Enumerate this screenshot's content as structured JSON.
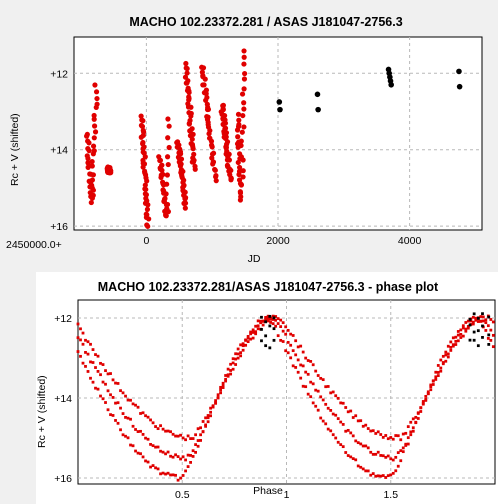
{
  "chart_data": [
    {
      "type": "scatter",
      "title": "MACHO 102.23372.281 / ASAS J181047-2756.3",
      "xlabel": "JD",
      "ylabel": "Rc + V (shifted)",
      "x_offset_label": "2450000.0+",
      "xlim": [
        -1100,
        5100
      ],
      "ylim": [
        16.1,
        11.05
      ],
      "y_inverted": true,
      "grid": true,
      "xticks": [
        0,
        2000,
        4000
      ],
      "xtick_labels": [
        "0",
        "2000",
        "4000"
      ],
      "yticks": [
        12,
        14,
        16
      ],
      "ytick_labels": [
        "+12",
        "+14",
        "+16"
      ],
      "series": [
        {
          "color": "#e00000",
          "segments": [
            {
              "x": [
                -900,
                -760
              ],
              "y_start": 13.6,
              "y_end": 15.4,
              "y_min": 12.3,
              "period_turn": -830
            },
            {
              "x": [
                -580,
                -560
              ],
              "y": [
                14.5,
                14.6
              ]
            },
            {
              "x": [
                -80,
                30
              ],
              "y_start": 13.1,
              "y_end": 16.0
            },
            {
              "x": [
                200,
                350
              ],
              "y_start": 14.2,
              "y_end": 15.8,
              "y_min": 13.2,
              "period_turn": 310
            },
            {
              "x": [
                480,
                600
              ],
              "y_start": 13.8,
              "y_end": 15.5
            },
            {
              "x": [
                600,
                730
              ],
              "y_start": 11.8,
              "y_end": 14.5
            },
            {
              "x": [
                850,
                1050
              ],
              "y_start": 11.8,
              "y_end": 14.8
            },
            {
              "x": [
                1150,
                1280
              ],
              "y_start": 12.8,
              "y_end": 14.8
            },
            {
              "x": [
                1380,
                1500
              ],
              "y_start": 13.1,
              "y_end": 15.3,
              "y_min": 11.4,
              "period_turn": 1440
            }
          ]
        },
        {
          "color": "#000000",
          "points": [
            [
              2020,
              12.75
            ],
            [
              2030,
              12.95
            ],
            [
              2600,
              12.55
            ],
            [
              2610,
              12.95
            ],
            [
              3680,
              11.9
            ],
            [
              3690,
              12.0
            ],
            [
              3700,
              12.1
            ],
            [
              3710,
              12.2
            ],
            [
              3720,
              12.3
            ],
            [
              4750,
              11.95
            ],
            [
              4760,
              12.35
            ]
          ]
        }
      ]
    },
    {
      "type": "scatter",
      "title": "MACHO 102.23372.281/ASAS J181047-2756.3 - phase plot",
      "xlabel": "Phase",
      "ylabel": "Rc + V (shifted)",
      "xlim": [
        0,
        2.0
      ],
      "ylim": [
        16.15,
        11.55
      ],
      "y_inverted": true,
      "grid": true,
      "xticks": [
        0.5,
        1.0,
        1.5
      ],
      "xtick_labels": [
        "0.5",
        "1",
        "1.5"
      ],
      "yticks": [
        12,
        14,
        16
      ],
      "ytick_labels": [
        "+12",
        "+14",
        "+16"
      ],
      "phase_curve": {
        "min_phase": 0.52,
        "max_phase": 0.95,
        "bright_mag": 12.0,
        "faint_mag_tracks": [
          15.0,
          15.5,
          16.0
        ]
      },
      "series": [
        {
          "color": "#e00000",
          "description_points": "folded light curve, phases 0-2"
        },
        {
          "color": "#000000",
          "phases": [
            0.88,
            0.9,
            0.92,
            0.94,
            1.88,
            1.9,
            1.92,
            1.94,
            1.97
          ]
        }
      ]
    }
  ]
}
